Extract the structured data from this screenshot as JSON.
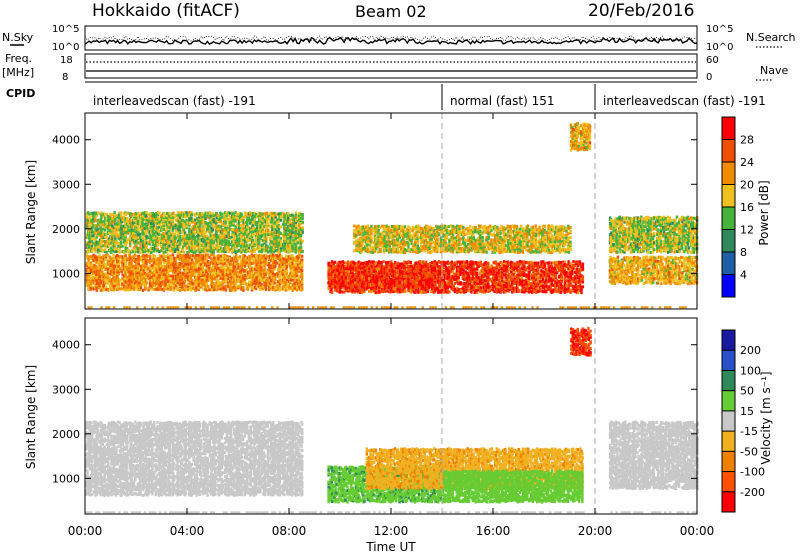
{
  "header": {
    "station": "Hokkaido (fitACF)",
    "beam": "Beam 02",
    "date": "20/Feb/2016"
  },
  "strips": {
    "nsky_label": "N.Sky",
    "nsky_ticks": [
      "10^5",
      "10^0"
    ],
    "nsearch_ticks": [
      "10^5",
      "10^0"
    ],
    "nsearch_label": "N.Search",
    "freq_label_line1": "Freq.",
    "freq_label_line2": "[MHz]",
    "freq_ticks": [
      "18",
      "8"
    ],
    "nave_ticks": [
      "60",
      "0"
    ],
    "nave_label": "Nave",
    "cpid_label": "CPID"
  },
  "cpid_segments": [
    {
      "label": "interleavedscan (fast) -191",
      "start_hour": 0,
      "end_hour": 14
    },
    {
      "label": "normal (fast) 151",
      "start_hour": 14,
      "end_hour": 20
    },
    {
      "label": "interleavedscan (fast) -191",
      "start_hour": 20,
      "end_hour": 24
    }
  ],
  "axes": {
    "x_ticks": [
      "00:00",
      "04:00",
      "08:00",
      "12:00",
      "16:00",
      "20:00",
      "00:00"
    ],
    "x_label": "Time UT",
    "y_label": "Slant Range [km]",
    "y_ticks": [
      "1000",
      "2000",
      "3000",
      "4000"
    ]
  },
  "power_scale": {
    "label": "Power [dB]",
    "ticks": [
      "4",
      "8",
      "12",
      "16",
      "20",
      "24",
      "28"
    ],
    "colors": [
      "#0000ff",
      "#1f5fa8",
      "#2f8a5a",
      "#46b43c",
      "#f0c020",
      "#f08c00",
      "#f05000",
      "#ff0000"
    ]
  },
  "velocity_scale": {
    "label": "Velocity [m s⁻¹]",
    "ticks": [
      "200",
      "100",
      "50",
      "15",
      "-15",
      "-50",
      "-100",
      "-200"
    ],
    "colors": [
      "#1a1aa0",
      "#2850c8",
      "#2f8a5a",
      "#66cc33",
      "#c8c8c8",
      "#f0b020",
      "#f08000",
      "#ff5000",
      "#ff0000"
    ]
  },
  "chart_data": [
    {
      "type": "heatmap",
      "title": "Power",
      "x_range_hours": [
        0,
        24
      ],
      "ylim": [
        200,
        4600
      ],
      "xlabel": "Time UT",
      "ylabel": "Slant Range [km]",
      "colorbar_label": "Power [dB]",
      "colorbar_range": [
        0,
        32
      ],
      "regions": [
        {
          "t": [
            0,
            8.5
          ],
          "r": [
            650,
            1450
          ],
          "level": 22
        },
        {
          "t": [
            0,
            8.5
          ],
          "r": [
            1500,
            2400
          ],
          "level": 16
        },
        {
          "t": [
            9.5,
            14
          ],
          "r": [
            700,
            1200
          ],
          "level": 28
        },
        {
          "t": [
            9.5,
            19.5
          ],
          "r": [
            600,
            1300
          ],
          "level": 28
        },
        {
          "t": [
            10.5,
            19
          ],
          "r": [
            1500,
            2100
          ],
          "level": 18
        },
        {
          "t": [
            19.0,
            19.8
          ],
          "r": [
            3800,
            4400
          ],
          "level": 20
        },
        {
          "t": [
            20.5,
            24
          ],
          "r": [
            800,
            1400
          ],
          "level": 20
        },
        {
          "t": [
            20.5,
            24
          ],
          "r": [
            1500,
            2300
          ],
          "level": 16
        }
      ]
    },
    {
      "type": "heatmap",
      "title": "Velocity",
      "x_range_hours": [
        0,
        24
      ],
      "ylim": [
        200,
        4600
      ],
      "xlabel": "Time UT",
      "ylabel": "Slant Range [km]",
      "colorbar_label": "Velocity [m s⁻¹]",
      "colorbar_range": [
        -200,
        200
      ],
      "regions": [
        {
          "t": [
            0,
            8.5
          ],
          "r": [
            650,
            2300
          ],
          "level": 0
        },
        {
          "t": [
            9.5,
            14
          ],
          "r": [
            500,
            1300
          ],
          "level": 40
        },
        {
          "t": [
            11,
            19.5
          ],
          "r": [
            800,
            1700
          ],
          "level": -40
        },
        {
          "t": [
            14,
            19.5
          ],
          "r": [
            500,
            1200
          ],
          "level": 30
        },
        {
          "t": [
            19.0,
            19.8
          ],
          "r": [
            3800,
            4400
          ],
          "level": -200
        },
        {
          "t": [
            20.5,
            24
          ],
          "r": [
            800,
            2300
          ],
          "level": 0
        }
      ]
    }
  ]
}
